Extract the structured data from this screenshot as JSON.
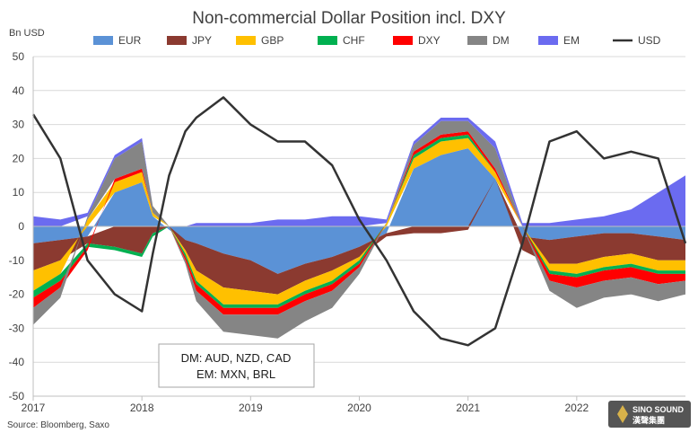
{
  "chart_data": {
    "type": "area",
    "title": "Non-commercial Dollar Position incl. DXY",
    "ylabel": "Bn USD",
    "ylim": [
      -50,
      50
    ],
    "yticks": [
      "50",
      "40",
      "30",
      "20",
      "10",
      "0",
      "-10",
      "-20",
      "-30",
      "-40",
      "-50"
    ],
    "xticks": [
      "2017",
      "2018",
      "2019",
      "2020",
      "2021",
      "2022"
    ],
    "grid": true,
    "legend_position": "top",
    "series": [
      {
        "name": "EUR",
        "color": "#5b92d6",
        "kind": "stacked-area"
      },
      {
        "name": "JPY",
        "color": "#8b3a30",
        "kind": "stacked-area"
      },
      {
        "name": "GBP",
        "color": "#ffc000",
        "kind": "stacked-area"
      },
      {
        "name": "CHF",
        "color": "#00b050",
        "kind": "stacked-area"
      },
      {
        "name": "DXY",
        "color": "#ff0000",
        "kind": "stacked-area"
      },
      {
        "name": "DM",
        "color": "#858585",
        "kind": "stacked-area"
      },
      {
        "name": "EM",
        "color": "#6b6bf0",
        "kind": "stacked-area"
      },
      {
        "name": "USD",
        "color": "#333333",
        "kind": "line"
      }
    ],
    "x": [
      2017.0,
      2017.25,
      2017.5,
      2017.75,
      2018.0,
      2018.1,
      2018.25,
      2018.4,
      2018.5,
      2018.75,
      2019.0,
      2019.25,
      2019.5,
      2019.75,
      2020.0,
      2020.25,
      2020.5,
      2020.75,
      2021.0,
      2021.25,
      2021.5,
      2021.75,
      2022.0,
      2022.25,
      2022.5,
      2022.75,
      2023.0
    ],
    "values": {
      "EUR": [
        -5,
        -4,
        -3,
        10,
        13,
        3,
        -1,
        -4,
        -5,
        -8,
        -10,
        -14,
        -11,
        -9,
        -6,
        -2,
        17,
        21,
        23,
        14,
        -3,
        -4,
        -3,
        -2,
        -2,
        -3,
        -4
      ],
      "JPY": [
        -8,
        -6,
        -2,
        -6,
        -8,
        -2,
        0,
        -3,
        -8,
        -10,
        -9,
        -6,
        -5,
        -4,
        -3,
        -1,
        -2,
        -2,
        -1,
        0,
        -4,
        -7,
        -8,
        -7,
        -6,
        -7,
        -6
      ],
      "GBP": [
        -6,
        -4,
        2,
        3,
        3,
        1,
        0,
        -1,
        -3,
        -5,
        -4,
        -3,
        -3,
        -3,
        -1,
        1,
        3,
        4,
        3,
        2,
        0,
        -2,
        -3,
        -3,
        -3,
        -3,
        -3
      ],
      "CHF": [
        -2,
        -2,
        -1,
        -1,
        -1,
        -1,
        0,
        -1,
        -1,
        -1,
        -1,
        -1,
        -1,
        -1,
        -1,
        0,
        1,
        1,
        1,
        0,
        0,
        -1,
        -1,
        -1,
        -1,
        -1,
        -1
      ],
      "DXY": [
        -3,
        -2,
        -1,
        1,
        1,
        0,
        0,
        -1,
        -2,
        -2,
        -2,
        -2,
        -2,
        -2,
        -1,
        0,
        1,
        1,
        1,
        1,
        0,
        -2,
        -3,
        -3,
        -3,
        -3,
        -2
      ],
      "DM": [
        -5,
        -3,
        1,
        6,
        8,
        2,
        0,
        -1,
        -3,
        -5,
        -6,
        -7,
        -6,
        -5,
        -2,
        0,
        2,
        4,
        3,
        6,
        0,
        -3,
        -6,
        -5,
        -5,
        -5,
        -4
      ],
      "EM": [
        3,
        2,
        1,
        1,
        1,
        0,
        0,
        0,
        1,
        1,
        1,
        2,
        2,
        3,
        3,
        1,
        1,
        1,
        1,
        2,
        1,
        1,
        2,
        3,
        5,
        10,
        15
      ],
      "USD": [
        33,
        20,
        -10,
        -20,
        -25,
        -8,
        15,
        28,
        32,
        38,
        30,
        25,
        25,
        18,
        2,
        -10,
        -25,
        -33,
        -35,
        -30,
        -5,
        25,
        28,
        20,
        22,
        20,
        -5
      ]
    },
    "annotations": [
      [
        "DM: AUD, NZD, CAD"
      ],
      [
        "EM: MXN, BRL"
      ]
    ],
    "source": "Source: Bloomberg, Saxo"
  },
  "logo": {
    "line1": "SINO SOUND",
    "line2": "漢聲集團"
  }
}
